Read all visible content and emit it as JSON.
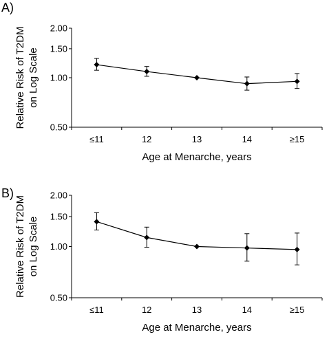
{
  "chart_data": [
    {
      "panel_label": "A)",
      "type": "line",
      "x_ticks": [
        "≤11",
        "12",
        "13",
        "14",
        "≥15"
      ],
      "xlabel": "Age at Menarche, years",
      "ylabel_lines": [
        "Relative Risk of T2DM",
        "on Log Scale"
      ],
      "y_scale": "log",
      "y_ticks": [
        "2.00",
        "1.50",
        "1.00",
        "0.50"
      ],
      "ylim": [
        0.5,
        2.0
      ],
      "grid": false,
      "series": [
        {
          "values": [
            1.2,
            1.09,
            1.0,
            0.92,
            0.95
          ],
          "lower": [
            1.11,
            1.02,
            1.0,
            0.84,
            0.86
          ],
          "upper": [
            1.31,
            1.17,
            1.0,
            1.01,
            1.06
          ]
        }
      ]
    },
    {
      "panel_label": "B)",
      "type": "line",
      "x_ticks": [
        "≤11",
        "12",
        "13",
        "14",
        "≥15"
      ],
      "xlabel": "Age at Menarche, years",
      "ylabel_lines": [
        "Relative Risk of T2DM",
        "on Log Scale"
      ],
      "y_scale": "log",
      "y_ticks": [
        "2.00",
        "1.50",
        "1.00",
        "0.50"
      ],
      "ylim": [
        0.5,
        2.0
      ],
      "grid": false,
      "series": [
        {
          "values": [
            1.4,
            1.13,
            1.0,
            0.98,
            0.96
          ],
          "lower": [
            1.25,
            0.99,
            1.0,
            0.82,
            0.78
          ],
          "upper": [
            1.58,
            1.3,
            1.0,
            1.19,
            1.2
          ]
        }
      ]
    }
  ]
}
